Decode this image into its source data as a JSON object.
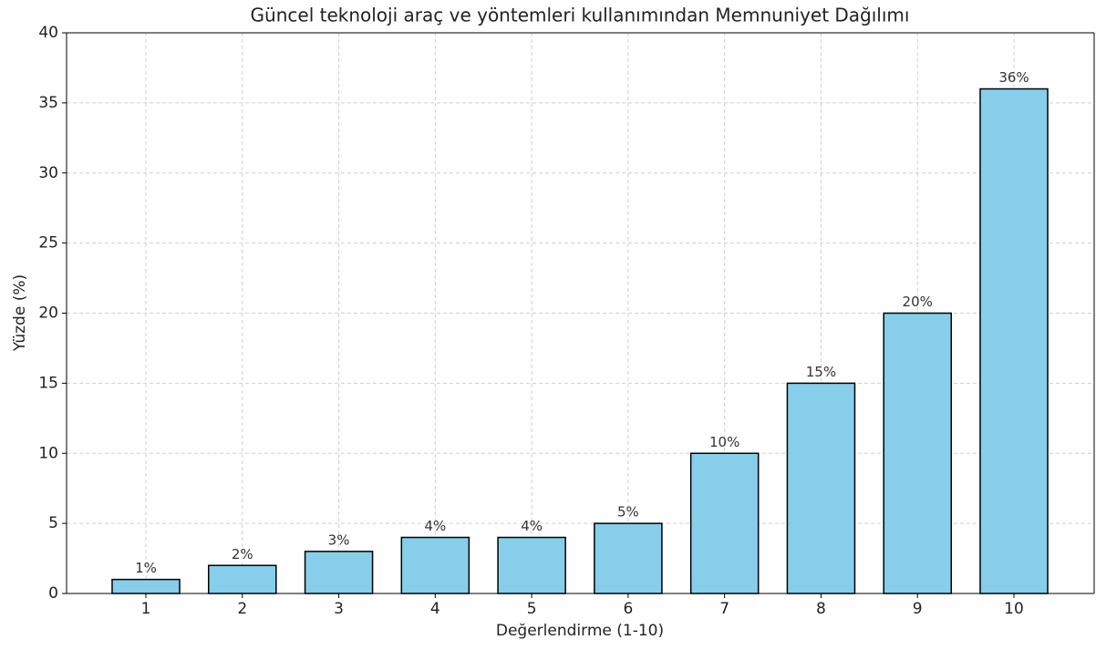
{
  "chart_data": {
    "type": "bar",
    "title": "Güncel teknoloji araç ve yöntemleri kullanımından Memnuniyet Dağılımı",
    "xlabel": "Değerlendirme (1-10)",
    "ylabel": "Yüzde (%)",
    "categories": [
      "1",
      "2",
      "3",
      "4",
      "5",
      "6",
      "7",
      "8",
      "9",
      "10"
    ],
    "values": [
      1,
      2,
      3,
      4,
      4,
      5,
      10,
      15,
      20,
      36
    ],
    "value_labels": [
      "1%",
      "2%",
      "3%",
      "4%",
      "4%",
      "5%",
      "10%",
      "15%",
      "20%",
      "36%"
    ],
    "color": "#87ceeb",
    "ylim": [
      0,
      40
    ],
    "yticks": [
      0,
      5,
      10,
      15,
      20,
      25,
      30,
      35,
      40
    ],
    "grid": true
  }
}
